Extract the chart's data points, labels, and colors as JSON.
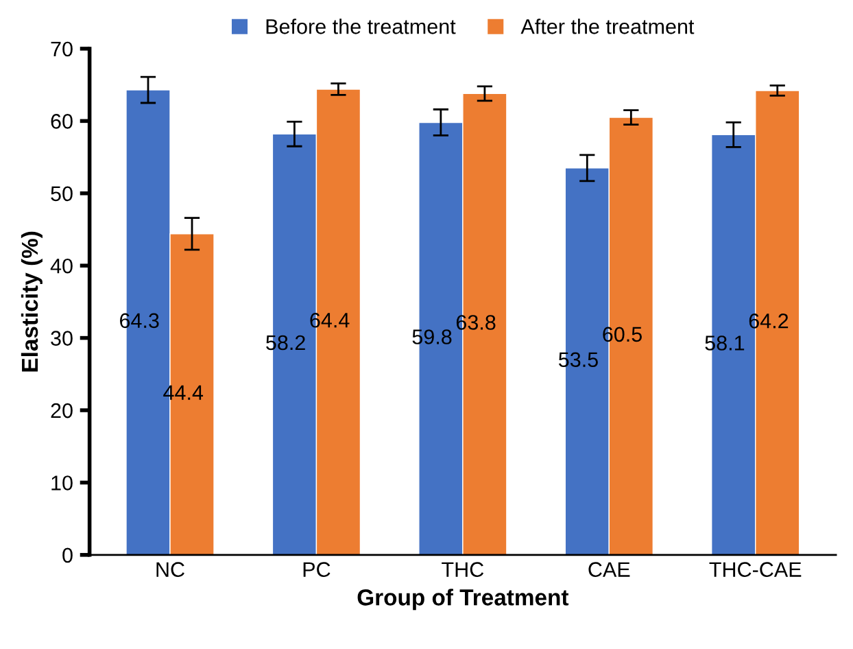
{
  "chart_data": {
    "type": "bar",
    "xlabel": "Group of Treatment",
    "ylabel": "Elasticity (%)",
    "categories": [
      "NC",
      "PC",
      "THC",
      "CAE",
      "THC-CAE"
    ],
    "series": [
      {
        "name": "Before the treatment",
        "color": "#4472c4",
        "values": [
          64.3,
          58.2,
          59.8,
          53.5,
          58.1
        ],
        "errors": [
          1.8,
          1.7,
          1.8,
          1.8,
          1.7
        ]
      },
      {
        "name": "After the treatment",
        "color": "#ed7d31",
        "values": [
          44.4,
          64.4,
          63.8,
          60.5,
          64.2
        ],
        "errors": [
          2.2,
          0.8,
          1.0,
          1.0,
          0.7
        ]
      }
    ],
    "ylim": [
      0,
      70
    ],
    "yticks": [
      0,
      10,
      20,
      30,
      40,
      50,
      60,
      70
    ],
    "grid": false,
    "legend": "top",
    "data_labels": true
  }
}
